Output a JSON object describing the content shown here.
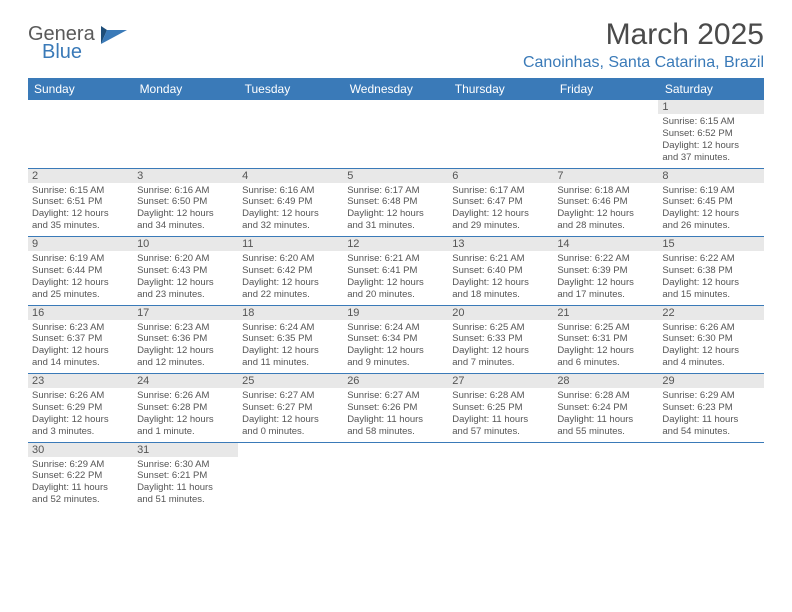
{
  "logo": {
    "line1": "Genera",
    "line2": "Blue"
  },
  "title": "March 2025",
  "subtitle": "Canoinhas, Santa Catarina, Brazil",
  "colors": {
    "header_bg": "#3a7ab8",
    "header_text": "#ffffff",
    "cell_border": "#3a7ab8",
    "daynum_bg": "#e8e8e8",
    "text_gray": "#555555",
    "logo_gray": "#5a5a5a"
  },
  "dayHeaders": [
    "Sunday",
    "Monday",
    "Tuesday",
    "Wednesday",
    "Thursday",
    "Friday",
    "Saturday"
  ],
  "weeks": [
    [
      {
        "n": "",
        "lines": []
      },
      {
        "n": "",
        "lines": []
      },
      {
        "n": "",
        "lines": []
      },
      {
        "n": "",
        "lines": []
      },
      {
        "n": "",
        "lines": []
      },
      {
        "n": "",
        "lines": []
      },
      {
        "n": "1",
        "lines": [
          "Sunrise: 6:15 AM",
          "Sunset: 6:52 PM",
          "Daylight: 12 hours",
          "and 37 minutes."
        ]
      }
    ],
    [
      {
        "n": "2",
        "lines": [
          "Sunrise: 6:15 AM",
          "Sunset: 6:51 PM",
          "Daylight: 12 hours",
          "and 35 minutes."
        ]
      },
      {
        "n": "3",
        "lines": [
          "Sunrise: 6:16 AM",
          "Sunset: 6:50 PM",
          "Daylight: 12 hours",
          "and 34 minutes."
        ]
      },
      {
        "n": "4",
        "lines": [
          "Sunrise: 6:16 AM",
          "Sunset: 6:49 PM",
          "Daylight: 12 hours",
          "and 32 minutes."
        ]
      },
      {
        "n": "5",
        "lines": [
          "Sunrise: 6:17 AM",
          "Sunset: 6:48 PM",
          "Daylight: 12 hours",
          "and 31 minutes."
        ]
      },
      {
        "n": "6",
        "lines": [
          "Sunrise: 6:17 AM",
          "Sunset: 6:47 PM",
          "Daylight: 12 hours",
          "and 29 minutes."
        ]
      },
      {
        "n": "7",
        "lines": [
          "Sunrise: 6:18 AM",
          "Sunset: 6:46 PM",
          "Daylight: 12 hours",
          "and 28 minutes."
        ]
      },
      {
        "n": "8",
        "lines": [
          "Sunrise: 6:19 AM",
          "Sunset: 6:45 PM",
          "Daylight: 12 hours",
          "and 26 minutes."
        ]
      }
    ],
    [
      {
        "n": "9",
        "lines": [
          "Sunrise: 6:19 AM",
          "Sunset: 6:44 PM",
          "Daylight: 12 hours",
          "and 25 minutes."
        ]
      },
      {
        "n": "10",
        "lines": [
          "Sunrise: 6:20 AM",
          "Sunset: 6:43 PM",
          "Daylight: 12 hours",
          "and 23 minutes."
        ]
      },
      {
        "n": "11",
        "lines": [
          "Sunrise: 6:20 AM",
          "Sunset: 6:42 PM",
          "Daylight: 12 hours",
          "and 22 minutes."
        ]
      },
      {
        "n": "12",
        "lines": [
          "Sunrise: 6:21 AM",
          "Sunset: 6:41 PM",
          "Daylight: 12 hours",
          "and 20 minutes."
        ]
      },
      {
        "n": "13",
        "lines": [
          "Sunrise: 6:21 AM",
          "Sunset: 6:40 PM",
          "Daylight: 12 hours",
          "and 18 minutes."
        ]
      },
      {
        "n": "14",
        "lines": [
          "Sunrise: 6:22 AM",
          "Sunset: 6:39 PM",
          "Daylight: 12 hours",
          "and 17 minutes."
        ]
      },
      {
        "n": "15",
        "lines": [
          "Sunrise: 6:22 AM",
          "Sunset: 6:38 PM",
          "Daylight: 12 hours",
          "and 15 minutes."
        ]
      }
    ],
    [
      {
        "n": "16",
        "lines": [
          "Sunrise: 6:23 AM",
          "Sunset: 6:37 PM",
          "Daylight: 12 hours",
          "and 14 minutes."
        ]
      },
      {
        "n": "17",
        "lines": [
          "Sunrise: 6:23 AM",
          "Sunset: 6:36 PM",
          "Daylight: 12 hours",
          "and 12 minutes."
        ]
      },
      {
        "n": "18",
        "lines": [
          "Sunrise: 6:24 AM",
          "Sunset: 6:35 PM",
          "Daylight: 12 hours",
          "and 11 minutes."
        ]
      },
      {
        "n": "19",
        "lines": [
          "Sunrise: 6:24 AM",
          "Sunset: 6:34 PM",
          "Daylight: 12 hours",
          "and 9 minutes."
        ]
      },
      {
        "n": "20",
        "lines": [
          "Sunrise: 6:25 AM",
          "Sunset: 6:33 PM",
          "Daylight: 12 hours",
          "and 7 minutes."
        ]
      },
      {
        "n": "21",
        "lines": [
          "Sunrise: 6:25 AM",
          "Sunset: 6:31 PM",
          "Daylight: 12 hours",
          "and 6 minutes."
        ]
      },
      {
        "n": "22",
        "lines": [
          "Sunrise: 6:26 AM",
          "Sunset: 6:30 PM",
          "Daylight: 12 hours",
          "and 4 minutes."
        ]
      }
    ],
    [
      {
        "n": "23",
        "lines": [
          "Sunrise: 6:26 AM",
          "Sunset: 6:29 PM",
          "Daylight: 12 hours",
          "and 3 minutes."
        ]
      },
      {
        "n": "24",
        "lines": [
          "Sunrise: 6:26 AM",
          "Sunset: 6:28 PM",
          "Daylight: 12 hours",
          "and 1 minute."
        ]
      },
      {
        "n": "25",
        "lines": [
          "Sunrise: 6:27 AM",
          "Sunset: 6:27 PM",
          "Daylight: 12 hours",
          "and 0 minutes."
        ]
      },
      {
        "n": "26",
        "lines": [
          "Sunrise: 6:27 AM",
          "Sunset: 6:26 PM",
          "Daylight: 11 hours",
          "and 58 minutes."
        ]
      },
      {
        "n": "27",
        "lines": [
          "Sunrise: 6:28 AM",
          "Sunset: 6:25 PM",
          "Daylight: 11 hours",
          "and 57 minutes."
        ]
      },
      {
        "n": "28",
        "lines": [
          "Sunrise: 6:28 AM",
          "Sunset: 6:24 PM",
          "Daylight: 11 hours",
          "and 55 minutes."
        ]
      },
      {
        "n": "29",
        "lines": [
          "Sunrise: 6:29 AM",
          "Sunset: 6:23 PM",
          "Daylight: 11 hours",
          "and 54 minutes."
        ]
      }
    ],
    [
      {
        "n": "30",
        "lines": [
          "Sunrise: 6:29 AM",
          "Sunset: 6:22 PM",
          "Daylight: 11 hours",
          "and 52 minutes."
        ]
      },
      {
        "n": "31",
        "lines": [
          "Sunrise: 6:30 AM",
          "Sunset: 6:21 PM",
          "Daylight: 11 hours",
          "and 51 minutes."
        ]
      },
      {
        "n": "",
        "lines": []
      },
      {
        "n": "",
        "lines": []
      },
      {
        "n": "",
        "lines": []
      },
      {
        "n": "",
        "lines": []
      },
      {
        "n": "",
        "lines": []
      }
    ]
  ]
}
